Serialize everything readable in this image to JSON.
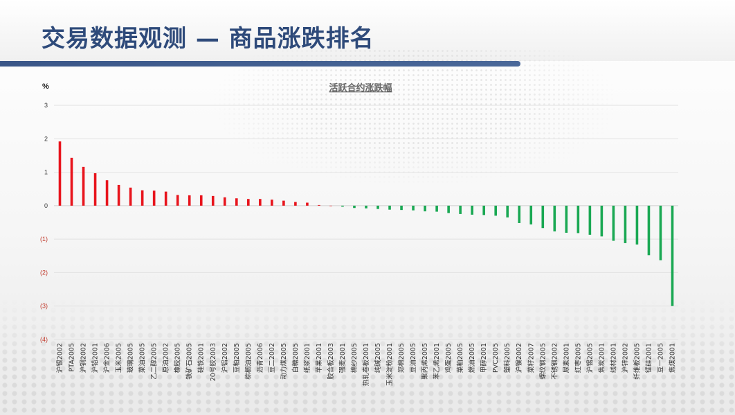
{
  "page": {
    "title": "交易数据观测 — 商品涨跌排名"
  },
  "chart_data": {
    "type": "bar",
    "title": "活跃合约涨跌幅",
    "ylabel": "%",
    "ylim": [
      -4,
      3
    ],
    "yticks": [
      3,
      2,
      1,
      0,
      -1,
      -2,
      -3,
      -4
    ],
    "ytick_labels": [
      "3",
      "2",
      "1",
      "0",
      "(1)",
      "(2)",
      "(3)",
      "(4)"
    ],
    "grid": true,
    "colors": {
      "positive": "#e8141c",
      "negative": "#1aa853"
    },
    "categories": [
      "沪银2002",
      "PTA2005",
      "沪铜2002",
      "沪铅2001",
      "沪金2006",
      "玉米2005",
      "玻璃2005",
      "菜油2005",
      "乙二醇2005",
      "原油2002",
      "橡胶2005",
      "铁矿石2005",
      "硅铁2001",
      "20号胶2003",
      "沪铝2002",
      "豆粕2005",
      "棕榈油2005",
      "沥青2006",
      "豆二2002",
      "动力煤2005",
      "白糖2005",
      "纸浆2001",
      "苹果2001",
      "胶合板2003",
      "强麦2001",
      "棉纱2005",
      "热轧卷板2001",
      "纯碱2005",
      "玉米淀粉2001",
      "郑棉2005",
      "豆油2005",
      "聚丙烯2005",
      "苯乙烯2001",
      "鸡蛋2005",
      "菜粕2005",
      "燃油2005",
      "甲醇2001",
      "PVC2005",
      "塑料2005",
      "沪镍2002",
      "菜籽2007",
      "螺纹钢2005",
      "不锈钢2002",
      "尿素2001",
      "红枣2005",
      "沪锡2005",
      "焦炭2001",
      "线材2001",
      "沪锌2002",
      "纤维板2005",
      "锰硅2001",
      "豆一2005",
      "焦煤2001"
    ],
    "values": [
      1.92,
      1.43,
      1.16,
      0.97,
      0.76,
      0.62,
      0.54,
      0.46,
      0.45,
      0.42,
      0.32,
      0.31,
      0.31,
      0.29,
      0.25,
      0.22,
      0.2,
      0.2,
      0.18,
      0.15,
      0.11,
      0.09,
      0.02,
      0.0,
      -0.03,
      -0.07,
      -0.08,
      -0.1,
      -0.12,
      -0.13,
      -0.14,
      -0.17,
      -0.18,
      -0.22,
      -0.25,
      -0.27,
      -0.28,
      -0.3,
      -0.35,
      -0.52,
      -0.56,
      -0.67,
      -0.77,
      -0.81,
      -0.82,
      -0.87,
      -0.92,
      -1.05,
      -1.12,
      -1.16,
      -1.48,
      -1.63,
      -3.0
    ]
  }
}
